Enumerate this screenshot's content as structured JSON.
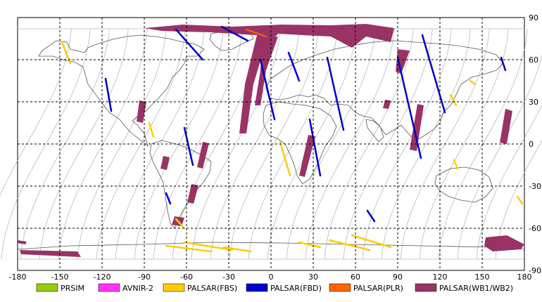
{
  "map": {
    "lon_range": [
      -180,
      180
    ],
    "lat_range": [
      -90,
      90
    ],
    "x_ticks": [
      "-180",
      "-150",
      "-120",
      "-90",
      "-60",
      "-30",
      "0",
      "30",
      "60",
      "90",
      "120",
      "150",
      "180"
    ],
    "y_ticks": [
      "90",
      "60",
      "30",
      "0",
      "-30",
      "-60",
      "-90"
    ],
    "grid": "dashed"
  },
  "legend": [
    {
      "label": "PRSIM",
      "color": "#99cc11"
    },
    {
      "label": "AVNIR-2",
      "color": "#ff33ff"
    },
    {
      "label": "PALSAR(FBS)",
      "color": "#ffcc00"
    },
    {
      "label": "PALSAR(FBD)",
      "color": "#0000cc"
    },
    {
      "label": "PALSAR(PLR)",
      "color": "#ff6600"
    },
    {
      "label": "PALSAR(WB1/WB2)",
      "color": "#993366"
    }
  ],
  "colors": {
    "orbit": "#b8b8b8",
    "coast": "#555555",
    "frame": "#000000"
  }
}
